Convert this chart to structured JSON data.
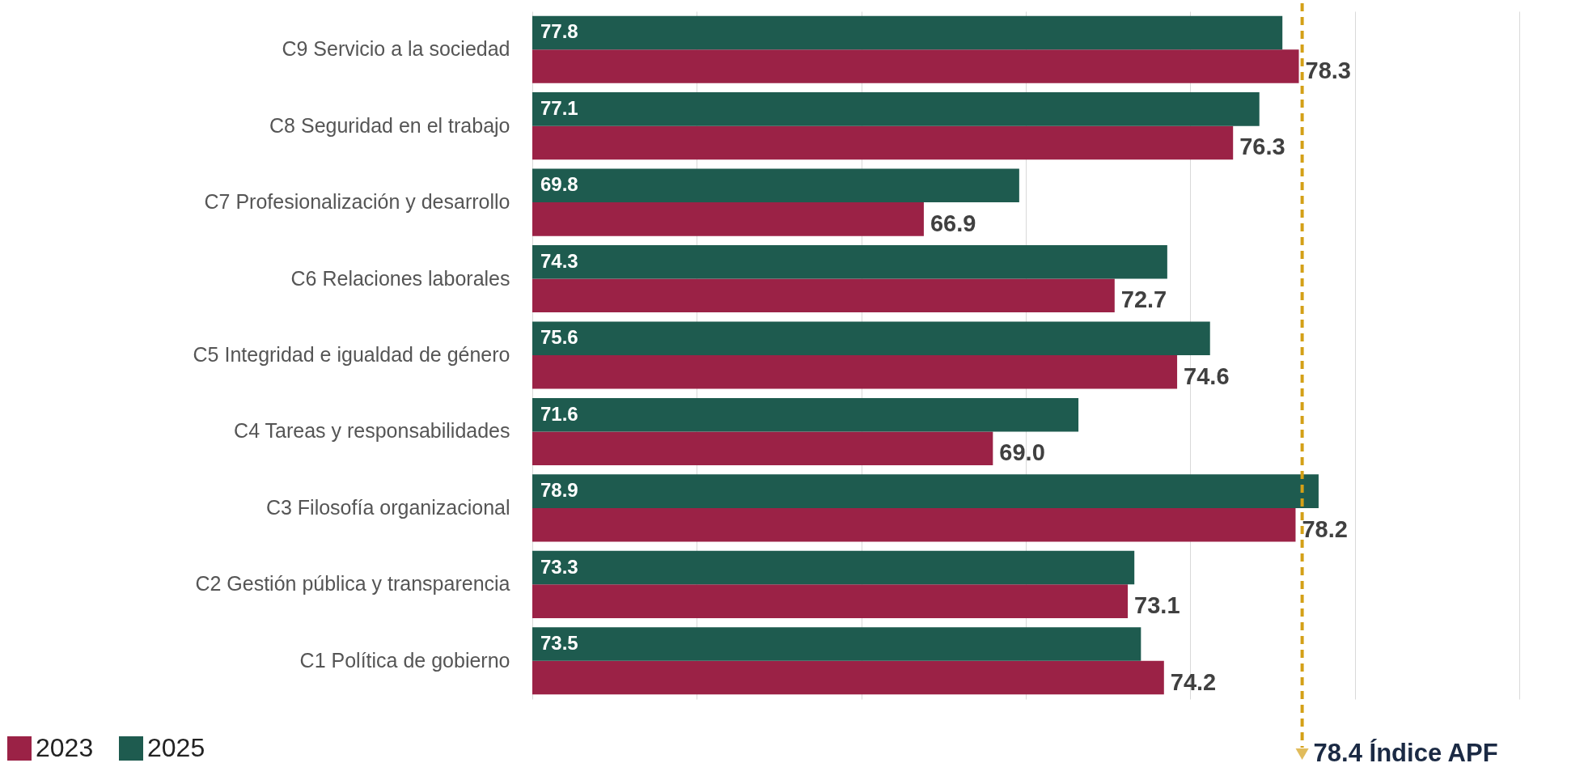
{
  "chart_data": {
    "type": "bar",
    "orientation": "horizontal",
    "categories": [
      "C9  Servicio a la sociedad",
      "C8  Seguridad en el trabajo",
      "C7 Profesionalización y desarrollo",
      "C6  Relaciones laborales",
      "C5  Integridad e igualdad de género",
      "C4  Tareas y responsabilidades",
      "C3  Filosofía organizacional",
      "C2  Gestión pública y transparencia",
      "C1  Política de gobierno"
    ],
    "series": [
      {
        "name": "2023",
        "color": "#9b2246",
        "values": [
          78.3,
          76.3,
          66.9,
          72.7,
          74.6,
          69.0,
          78.2,
          73.1,
          74.2
        ],
        "value_labels": [
          "78.3",
          "76.3",
          "66.9",
          "72.7",
          "74.6",
          "69.0",
          "78.2",
          "73.1",
          "74.2"
        ]
      },
      {
        "name": "2025",
        "color": "#1e5b4f",
        "values": [
          77.8,
          77.1,
          69.8,
          74.3,
          75.6,
          71.6,
          78.9,
          73.3,
          73.5
        ],
        "value_labels": [
          "77.8",
          "77.1",
          "69.8",
          "74.3",
          "75.6",
          "71.6",
          "78.9",
          "73.3",
          "73.5"
        ]
      }
    ],
    "xlim": [
      55,
      85
    ],
    "xticks": [
      {
        "value": 55,
        "label": null
      },
      {
        "value": 60,
        "label": null
      },
      {
        "value": 65,
        "label": null
      },
      {
        "value": 70,
        "label": null
      },
      {
        "value": 75,
        "label": null
      },
      {
        "value": 80,
        "label": null
      },
      {
        "value": 85,
        "label": null
      }
    ],
    "tick_labels": "y",
    "grid": "x",
    "legend": "bottom left",
    "ref_lines": [
      {
        "axis": "x",
        "value": 78.4,
        "label": "78.4 Índice APF",
        "color": "#d4a017",
        "line_style": "dashed"
      }
    ]
  }
}
